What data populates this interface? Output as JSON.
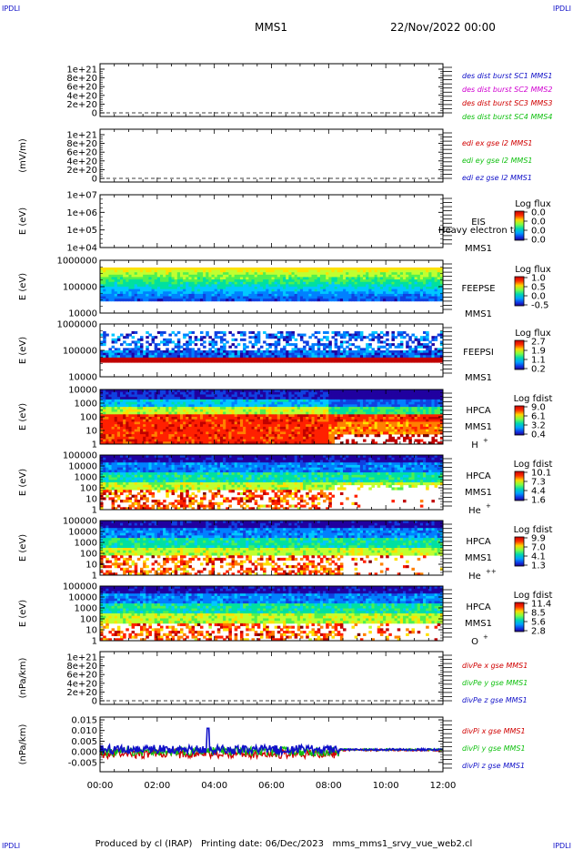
{
  "corners": {
    "tl": "IPDLI",
    "tr": "IPDLI",
    "bl": "IPDLI",
    "br": "IPDLI"
  },
  "header": {
    "spacecraft": "MMS1",
    "datetime": "22/Nov/2022 00:00"
  },
  "footer": {
    "text": "Produced by cl (IRAP)   Printing date: 06/Dec/2023   mms_mms1_srvy_vue_web2.cl"
  },
  "time_axis": {
    "labels": [
      "00:00",
      "02:00",
      "04:00",
      "06:00",
      "08:00",
      "10:00",
      "12:00"
    ]
  },
  "colors": {
    "blue": "#1010c8",
    "magenta": "#d000d0",
    "red": "#d00000",
    "green": "#10c010"
  },
  "chart_data": [
    {
      "id": "p1",
      "type": "line",
      "ylabel": "",
      "yticks": [
        "1e+21",
        "8e+20",
        "6e+20",
        "4e+20",
        "2e+20",
        "0"
      ],
      "series": [
        {
          "name": "des dist burst SC1 MMS1",
          "color": "#1010c8",
          "values": []
        },
        {
          "name": "des dist burst SC2 MMS2",
          "color": "#d000d0",
          "values": []
        },
        {
          "name": "des dist burst SC3 MMS3",
          "color": "#d00000",
          "values": []
        },
        {
          "name": "des dist burst SC4 MMS4",
          "color": "#10c010",
          "values": []
        }
      ]
    },
    {
      "id": "p2",
      "type": "line",
      "ylabel": "(mV/m)",
      "yticks": [
        "1e+21",
        "8e+20",
        "6e+20",
        "4e+20",
        "2e+20",
        "0"
      ],
      "series": [
        {
          "name": "edi ex gse l2 MMS1",
          "color": "#d00000",
          "values": []
        },
        {
          "name": "edi ey gse l2 MMS1",
          "color": "#10c010",
          "values": []
        },
        {
          "name": "edi ez gse l2 MMS1",
          "color": "#1010c8",
          "values": []
        }
      ]
    },
    {
      "id": "p3",
      "type": "heatmap",
      "ylabel": "E (eV)",
      "yticks": [
        "1e+07",
        "1e+06",
        "1e+05",
        "1e+04"
      ],
      "labels": [
        "EIS",
        "MMS1"
      ],
      "overlay_text": "Heavy electron to",
      "cbar_title": "Log flux",
      "cbar_ticks": [
        "0.0",
        "0.0",
        "0.0",
        "0.0"
      ]
    },
    {
      "id": "p4",
      "type": "heatmap",
      "ylabel": "E (eV)",
      "yticks": [
        "1000000",
        "100000",
        "10000"
      ],
      "labels": [
        "FEEPSE",
        "MMS1"
      ],
      "cbar_title": "Log flux",
      "cbar_ticks": [
        "1.0",
        "0.5",
        "0.0",
        "-0.5"
      ]
    },
    {
      "id": "p5",
      "type": "heatmap",
      "ylabel": "E (eV)",
      "yticks": [
        "1000000",
        "100000",
        "10000"
      ],
      "labels": [
        "FEEPSI",
        "MMS1"
      ],
      "cbar_title": "Log flux",
      "cbar_ticks": [
        "2.7",
        "1.9",
        "1.1",
        "0.2"
      ]
    },
    {
      "id": "p6",
      "type": "heatmap",
      "ylabel": "E (eV)",
      "yticks": [
        "10000",
        "1000",
        "100",
        "10",
        "1"
      ],
      "labels": [
        "HPCA",
        "MMS1",
        "H",
        "+"
      ],
      "cbar_title": "Log fdist",
      "cbar_ticks": [
        "9.0",
        "6.1",
        "3.2",
        "0.4"
      ]
    },
    {
      "id": "p7",
      "type": "heatmap",
      "ylabel": "E (eV)",
      "yticks": [
        "100000",
        "10000",
        "1000",
        "100",
        "10",
        "1"
      ],
      "labels": [
        "HPCA",
        "MMS1",
        "He",
        "+"
      ],
      "cbar_title": "Log fdist",
      "cbar_ticks": [
        "10.1",
        "7.3",
        "4.4",
        "1.6"
      ]
    },
    {
      "id": "p8",
      "type": "heatmap",
      "ylabel": "E (eV)",
      "yticks": [
        "100000",
        "10000",
        "1000",
        "100",
        "10",
        "1"
      ],
      "labels": [
        "HPCA",
        "MMS1",
        "He",
        "++"
      ],
      "cbar_title": "Log fdist",
      "cbar_ticks": [
        "9.9",
        "7.0",
        "4.1",
        "1.3"
      ]
    },
    {
      "id": "p9",
      "type": "heatmap",
      "ylabel": "E (eV)",
      "yticks": [
        "100000",
        "10000",
        "1000",
        "100",
        "10",
        "1"
      ],
      "labels": [
        "HPCA",
        "MMS1",
        "O",
        "+"
      ],
      "cbar_title": "Log fdist",
      "cbar_ticks": [
        "11.4",
        "8.5",
        "5.6",
        "2.8"
      ]
    },
    {
      "id": "p10",
      "type": "line",
      "ylabel": "(nPa/km)",
      "yticks": [
        "1e+21",
        "8e+20",
        "6e+20",
        "4e+20",
        "2e+20",
        "0"
      ],
      "series": [
        {
          "name": "divPe x gse MMS1",
          "color": "#d00000",
          "values": []
        },
        {
          "name": "divPe y gse MMS1",
          "color": "#10c010",
          "values": []
        },
        {
          "name": "divPe z gse MMS1",
          "color": "#1010c8",
          "values": []
        }
      ]
    },
    {
      "id": "p11",
      "type": "line",
      "ylabel": "(nPa/km)",
      "yticks": [
        "0.015",
        "0.010",
        "0.005",
        "0.000",
        "-0.005"
      ],
      "series": [
        {
          "name": "divPi x gse MMS1",
          "color": "#d00000"
        },
        {
          "name": "divPi y gse MMS1",
          "color": "#10c010"
        },
        {
          "name": "divPi z gse MMS1",
          "color": "#1010c8"
        }
      ]
    }
  ]
}
